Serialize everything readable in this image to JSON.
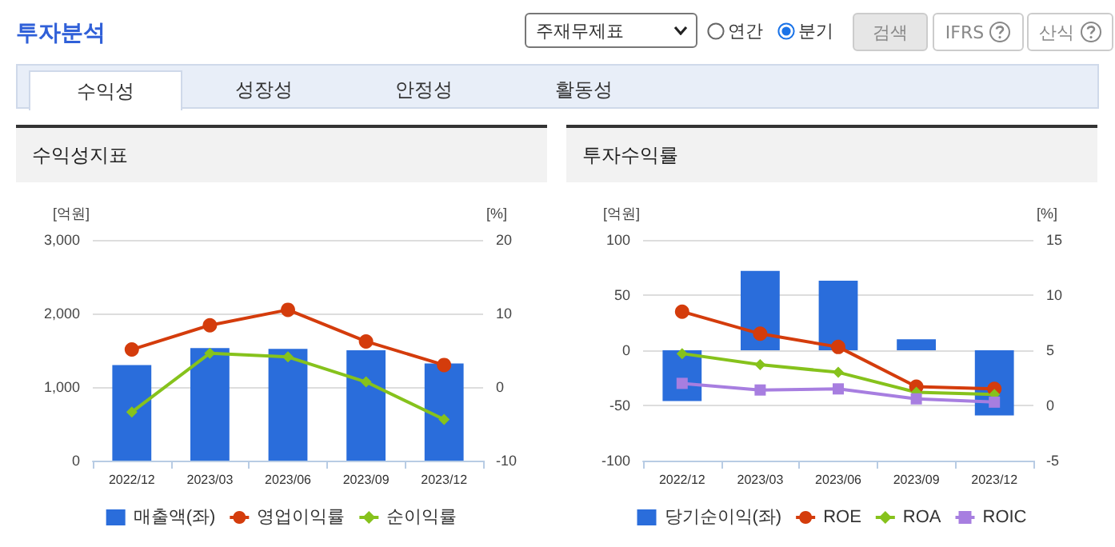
{
  "chart_data": [
    {
      "type": "other",
      "title": "투자분석",
      "annotations": [
        "주재무제표",
        "연간",
        "분기",
        "검색",
        "IFRS",
        "산식",
        "수익성",
        "성장성",
        "안정성",
        "활동성"
      ]
    },
    {
      "type": "bar",
      "title": "수익성지표",
      "categories": [
        "2022/12",
        "2023/03",
        "2023/06",
        "2023/09",
        "2023/12"
      ],
      "ylabel": "[억원]",
      "y2label": "[%]",
      "series": [
        {
          "name": "매출액(좌)",
          "type": "bar",
          "color": "#2a6ddb",
          "values": [
            1300,
            1530,
            1520,
            1500,
            1320
          ]
        },
        {
          "name": "영업이익률",
          "type": "line",
          "axis": "y2",
          "color": "#d43c0c",
          "marker": "circle",
          "values": [
            5.1,
            8.4,
            10.5,
            6.2,
            3.0
          ]
        },
        {
          "name": "순이익률",
          "type": "line",
          "axis": "y2",
          "color": "#86c21c",
          "marker": "diamond",
          "values": [
            -3.4,
            4.6,
            4.1,
            0.7,
            -4.4
          ]
        }
      ],
      "ylim": [
        0,
        3000
      ],
      "yticks": [
        0,
        {
          "value": 1000,
          "label": "1,000"
        },
        {
          "value": 2000,
          "label": "2,000"
        },
        {
          "value": 3000,
          "label": "3,000"
        }
      ],
      "y2lim": [
        -10,
        20
      ],
      "y2ticks": [
        -10,
        0,
        10,
        20
      ],
      "grid": "y",
      "legend": "bottom"
    },
    {
      "type": "bar",
      "title": "투자수익률",
      "categories": [
        "2022/12",
        "2023/03",
        "2023/06",
        "2023/09",
        "2023/12"
      ],
      "ylabel": "[억원]",
      "y2label": "[%]",
      "series": [
        {
          "name": "당기순이익(좌)",
          "type": "bar",
          "color": "#2a6ddb",
          "values": [
            -46,
            72,
            63,
            10,
            -59
          ]
        },
        {
          "name": "ROE",
          "type": "line",
          "axis": "y2",
          "color": "#d43c0c",
          "marker": "circle",
          "values": [
            8.5,
            6.5,
            5.3,
            1.7,
            1.5
          ]
        },
        {
          "name": "ROA",
          "type": "line",
          "axis": "y2",
          "color": "#86c21c",
          "marker": "diamond",
          "values": [
            4.7,
            3.7,
            3.0,
            1.2,
            1.0
          ]
        },
        {
          "name": "ROIC",
          "type": "line",
          "axis": "y2",
          "color": "#a77ee0",
          "marker": "square",
          "values": [
            2.0,
            1.4,
            1.5,
            0.6,
            0.3
          ]
        }
      ],
      "ylim": [
        -100,
        100
      ],
      "yticks": [
        -100,
        -50,
        0,
        50,
        100
      ],
      "y2lim": [
        -5,
        15
      ],
      "y2ticks": [
        -5,
        0,
        5,
        10,
        15
      ],
      "grid": "y",
      "legend": "bottom"
    }
  ]
}
